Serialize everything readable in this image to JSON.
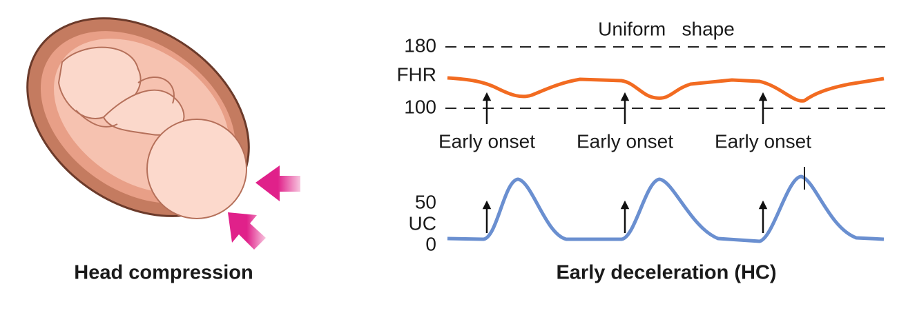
{
  "left": {
    "caption": "Head compression"
  },
  "right": {
    "title": "Uniform   shape",
    "fhr": {
      "label": "FHR",
      "ticks": [
        "180",
        "100"
      ]
    },
    "onset_labels": [
      "Early onset",
      "Early onset",
      "Early onset"
    ],
    "uc": {
      "label": "UC",
      "ticks": [
        "50",
        "0"
      ]
    },
    "caption": "Early deceleration (HC)"
  }
}
